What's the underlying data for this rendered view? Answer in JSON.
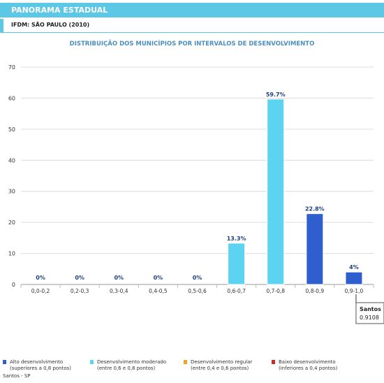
{
  "header": {
    "title": "PANORAMA ESTADUAL"
  },
  "subheader": {
    "title": "IFDM: SÃO PAULO (2010)"
  },
  "chart_data": {
    "type": "bar",
    "title": "DISTRIBUIÇÃO DOS MUNICÍPIOS POR INTERVALOS DE DESENVOLVIMENTO",
    "xlabel": "",
    "ylabel": "",
    "categories": [
      "0,0-0,2",
      "0,2-0,3",
      "0,3-0,4",
      "0,4-0,5",
      "0,5-0,6",
      "0,6-0,7",
      "0,7-0,8",
      "0,8-0,9",
      "0,9-1,0"
    ],
    "values": [
      0,
      0,
      0,
      0,
      0,
      13.3,
      59.7,
      22.8,
      4
    ],
    "data_labels": [
      "0%",
      "0%",
      "0%",
      "0%",
      "0%",
      "13.3%",
      "59.7%",
      "22.8%",
      "4%"
    ],
    "bar_colors": [
      "#5cd3f0",
      "#5cd3f0",
      "#5cd3f0",
      "#5cd3f0",
      "#5cd3f0",
      "#5cd3f0",
      "#5cd3f0",
      "#2f5fcf",
      "#2f5fcf"
    ],
    "yticks": [
      0,
      10,
      20,
      30,
      40,
      50,
      60,
      70
    ],
    "ylim": [
      0,
      70
    ],
    "grid": true,
    "marker": {
      "category": "0,9-1,0",
      "label": "Santos",
      "value": "0.9108"
    }
  },
  "legend": [
    {
      "label": "Alto desenvolvimento",
      "sublabel": "(superiores a 0,8 pontos)",
      "color": "#2f5fcf"
    },
    {
      "label": "Desenvolvimento moderado",
      "sublabel": "(entre 0,6 e 0,8 pontos)",
      "color": "#5cd3f0"
    },
    {
      "label": "Desenvolvimento regular",
      "sublabel": "(entre 0,4 e 0,6 pontos)",
      "color": "#e8a825"
    },
    {
      "label": "Baixo desenvolvimento",
      "sublabel": "(inferiores a 0,4 pontos)",
      "color": "#d32626"
    }
  ],
  "footnote": "Santos - SP"
}
